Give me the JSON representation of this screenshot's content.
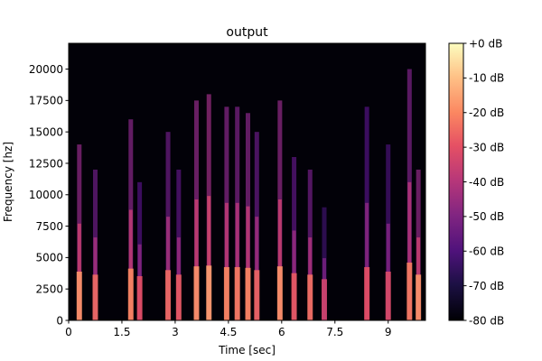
{
  "chart_data": {
    "type": "heatmap",
    "title": "output",
    "xlabel": "Time [sec]",
    "ylabel": "Frequency [hz]",
    "xlim": [
      0,
      10.05
    ],
    "ylim": [
      0,
      22050
    ],
    "xticks": [
      {
        "value": 0,
        "label": "0"
      },
      {
        "value": 1.5,
        "label": "1.5"
      },
      {
        "value": 3,
        "label": "3"
      },
      {
        "value": 4.5,
        "label": "4.5"
      },
      {
        "value": 6,
        "label": "6"
      },
      {
        "value": 7.5,
        "label": "7.5"
      },
      {
        "value": 9,
        "label": "9"
      }
    ],
    "yticks": [
      {
        "value": 0,
        "label": "0"
      },
      {
        "value": 2500,
        "label": "2500"
      },
      {
        "value": 5000,
        "label": "5000"
      },
      {
        "value": 7500,
        "label": "7500"
      },
      {
        "value": 10000,
        "label": "10000"
      },
      {
        "value": 12500,
        "label": "12500"
      },
      {
        "value": 15000,
        "label": "15000"
      },
      {
        "value": 17500,
        "label": "17500"
      },
      {
        "value": 20000,
        "label": "20000"
      }
    ],
    "colorbar": {
      "range_db": [
        -80,
        0
      ],
      "colormap": "magma",
      "ticks": [
        {
          "value": 0,
          "label": "+0 dB"
        },
        {
          "value": -10,
          "label": "-10 dB"
        },
        {
          "value": -20,
          "label": "-20 dB"
        },
        {
          "value": -30,
          "label": "-30 dB"
        },
        {
          "value": -40,
          "label": "-40 dB"
        },
        {
          "value": -50,
          "label": "-50 dB"
        },
        {
          "value": -60,
          "label": "-60 dB"
        },
        {
          "value": -70,
          "label": "-70 dB"
        },
        {
          "value": -80,
          "label": "-80 dB"
        }
      ]
    },
    "energy_bursts": [
      {
        "t": 0.3,
        "fmax": 14000,
        "peak_db": -18
      },
      {
        "t": 0.75,
        "fmax": 12000,
        "peak_db": -25
      },
      {
        "t": 1.75,
        "fmax": 16000,
        "peak_db": -20
      },
      {
        "t": 2.0,
        "fmax": 11000,
        "peak_db": -30
      },
      {
        "t": 2.8,
        "fmax": 15000,
        "peak_db": -25
      },
      {
        "t": 3.1,
        "fmax": 12000,
        "peak_db": -28
      },
      {
        "t": 3.6,
        "fmax": 17500,
        "peak_db": -18
      },
      {
        "t": 3.95,
        "fmax": 18000,
        "peak_db": -16
      },
      {
        "t": 4.45,
        "fmax": 17000,
        "peak_db": -20
      },
      {
        "t": 4.75,
        "fmax": 17000,
        "peak_db": -22
      },
      {
        "t": 5.05,
        "fmax": 16500,
        "peak_db": -20
      },
      {
        "t": 5.3,
        "fmax": 15000,
        "peak_db": -26
      },
      {
        "t": 5.95,
        "fmax": 17500,
        "peak_db": -18
      },
      {
        "t": 6.35,
        "fmax": 13000,
        "peak_db": -28
      },
      {
        "t": 6.8,
        "fmax": 12000,
        "peak_db": -24
      },
      {
        "t": 7.2,
        "fmax": 9000,
        "peak_db": -34
      },
      {
        "t": 8.4,
        "fmax": 17000,
        "peak_db": -30
      },
      {
        "t": 9.0,
        "fmax": 14000,
        "peak_db": -32
      },
      {
        "t": 9.6,
        "fmax": 20000,
        "peak_db": -22
      },
      {
        "t": 9.85,
        "fmax": 12000,
        "peak_db": -18
      }
    ]
  }
}
